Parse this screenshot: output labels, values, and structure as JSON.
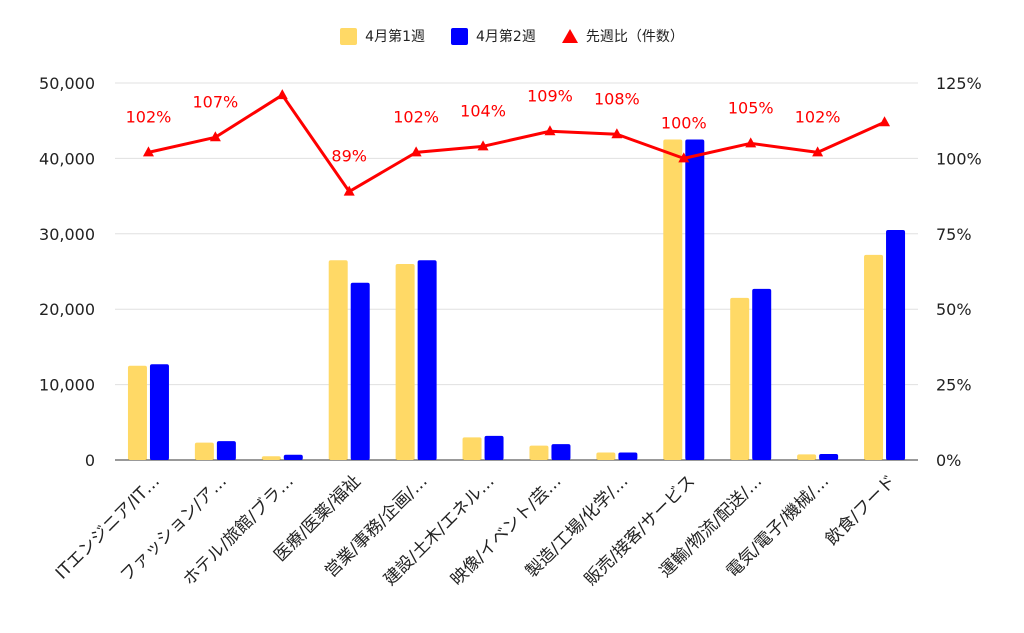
{
  "chart_data": {
    "type": "bar",
    "categories": [
      "ITエンジニア/IT…",
      "ファッション/ア…",
      "ホテル/旅館/ブラ…",
      "医療/医薬/福祉",
      "営業/事務/企画/…",
      "建設/土木/エネル…",
      "映像/イベント/芸…",
      "製造/工場/化学/…",
      "販売/接客/サービス",
      "運輸/物流/配送/…",
      "電気/電子/機械/…",
      "飲食/フード"
    ],
    "series": [
      {
        "name": "4月第1週",
        "color": "#ffd966",
        "axis": "left",
        "values": [
          12500,
          2300,
          500,
          26500,
          26000,
          3000,
          1900,
          1000,
          42500,
          21500,
          750,
          27200
        ]
      },
      {
        "name": "4月第2週",
        "color": "#0000ff",
        "axis": "left",
        "values": [
          12700,
          2500,
          700,
          23500,
          26500,
          3200,
          2100,
          1000,
          42500,
          22700,
          800,
          30500
        ]
      },
      {
        "name": "先週比（件数）",
        "color": "#ff0000",
        "axis": "right",
        "kind": "line",
        "values": [
          102,
          107,
          121,
          89,
          102,
          104,
          109,
          108,
          100,
          105,
          102,
          112
        ]
      }
    ],
    "point_labels": [
      "102%",
      "107%",
      "",
      "89%",
      "102%",
      "104%",
      "109%",
      "108%",
      "100%",
      "105%",
      "102%",
      ""
    ],
    "yleft": {
      "ticks": [
        "0",
        "10,000",
        "20,000",
        "30,000",
        "40,000",
        "50,000"
      ],
      "lim": [
        0,
        50000
      ]
    },
    "yright": {
      "ticks": [
        "0%",
        "25%",
        "50%",
        "75%",
        "100%",
        "125%"
      ],
      "lim": [
        0,
        125
      ]
    },
    "legend_position": "top"
  }
}
